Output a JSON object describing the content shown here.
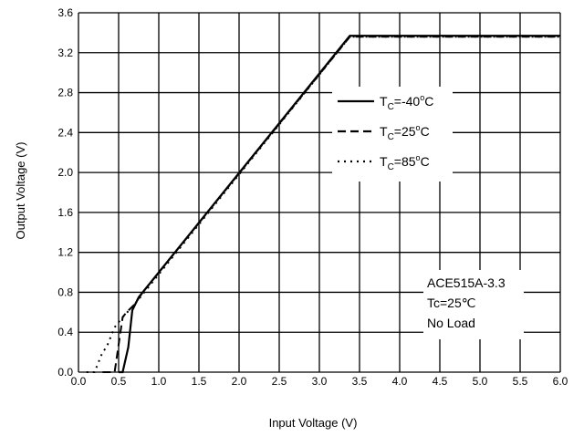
{
  "chart_data": {
    "type": "line",
    "xlabel": "Input Voltage (V)",
    "ylabel": "Output Voltage (V)",
    "xlim": [
      0,
      6
    ],
    "ylim": [
      0,
      3.6
    ],
    "grid": true,
    "x_ticks": [
      "0.0",
      "0.5",
      "1.0",
      "1.5",
      "2.0",
      "2.5",
      "3.0",
      "3.5",
      "4.0",
      "4.5",
      "5.0",
      "5.5",
      "6.0"
    ],
    "y_ticks": [
      "0.0",
      "0.4",
      "0.8",
      "1.2",
      "1.6",
      "2.0",
      "2.4",
      "2.8",
      "3.2",
      "3.6"
    ],
    "legend_placement": "upper-right",
    "series": [
      {
        "name": "Tc=-40°C",
        "style": "solid",
        "x": [
          0.5,
          0.55,
          0.62,
          0.67,
          0.75,
          3.38,
          6.0
        ],
        "y": [
          0.0,
          0.0,
          0.25,
          0.62,
          0.75,
          3.37,
          3.37
        ]
      },
      {
        "name": "Tc=25°C",
        "style": "dashed",
        "x": [
          0.3,
          0.45,
          0.55,
          0.6,
          0.7,
          0.8,
          3.38,
          6.0
        ],
        "y": [
          0.0,
          0.0,
          0.55,
          0.6,
          0.68,
          0.8,
          3.36,
          3.36
        ]
      },
      {
        "name": "Tc=85°C",
        "style": "dotted",
        "x": [
          0.1,
          0.2,
          0.3,
          0.35,
          0.45,
          0.55,
          0.7,
          3.38,
          6.0
        ],
        "y": [
          0.0,
          0.0,
          0.2,
          0.25,
          0.45,
          0.55,
          0.68,
          3.36,
          3.36
        ]
      }
    ],
    "legend": {
      "entries": [
        {
          "prefix": "T",
          "sub": "C",
          "rest": "=-40",
          "sup": "o",
          "unit": "C",
          "style": "solid"
        },
        {
          "prefix": "T",
          "sub": "C",
          "rest": "=25",
          "sup": "o",
          "unit": "C",
          "style": "dashed"
        },
        {
          "prefix": "T",
          "sub": "C",
          "rest": "=85",
          "sup": "o",
          "unit": "C",
          "style": "dotted"
        }
      ]
    },
    "annotation": {
      "lines": [
        "ACE515A-3.3",
        "Tc=25℃",
        "No Load"
      ]
    }
  }
}
